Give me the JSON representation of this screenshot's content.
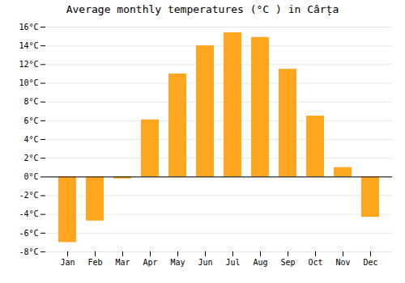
{
  "chart_data": {
    "type": "bar",
    "title": "Average monthly temperatures (°C ) in Cârța",
    "categories": [
      "Jan",
      "Feb",
      "Mar",
      "Apr",
      "May",
      "Jun",
      "Jul",
      "Aug",
      "Sep",
      "Oct",
      "Nov",
      "Dec"
    ],
    "values": [
      -7.0,
      -4.7,
      -0.2,
      6.1,
      11.0,
      14.0,
      15.4,
      14.9,
      11.5,
      6.5,
      1.0,
      -4.3
    ],
    "color": "#FFA620",
    "ylim": [
      -8,
      16
    ],
    "yticks": [
      {
        "value": -8,
        "label": "-8°C"
      },
      {
        "value": -6,
        "label": "-6°C"
      },
      {
        "value": -4,
        "label": "-4°C"
      },
      {
        "value": -2,
        "label": "-2°C"
      },
      {
        "value": 0,
        "label": "0°C"
      },
      {
        "value": 2,
        "label": "2°C"
      },
      {
        "value": 4,
        "label": "4°C"
      },
      {
        "value": 6,
        "label": "6°C"
      },
      {
        "value": 8,
        "label": "8°C"
      },
      {
        "value": 10,
        "label": "10°C"
      },
      {
        "value": 12,
        "label": "12°C"
      },
      {
        "value": 14,
        "label": "14°C"
      },
      {
        "value": 16,
        "label": "16°C"
      }
    ],
    "grid": true
  }
}
